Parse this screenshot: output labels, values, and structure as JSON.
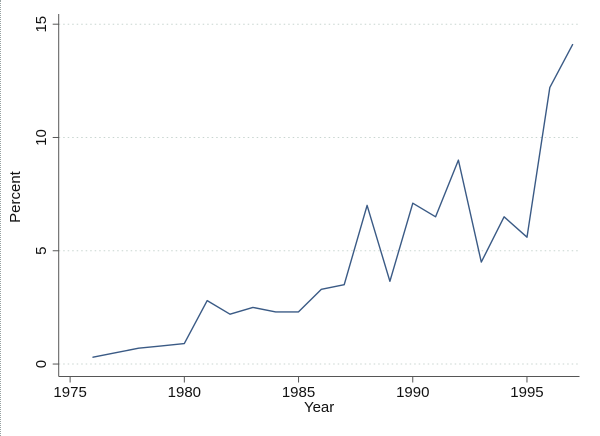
{
  "chart_data": {
    "type": "line",
    "title": "",
    "xlabel": "Year",
    "ylabel": "Percent",
    "x": [
      1976,
      1977,
      1978,
      1979,
      1980,
      1981,
      1982,
      1983,
      1984,
      1985,
      1986,
      1987,
      1988,
      1989,
      1990,
      1991,
      1992,
      1993,
      1994,
      1995,
      1996,
      1997
    ],
    "series": [
      {
        "name": "percent",
        "values": [
          0.3,
          0.5,
          0.7,
          0.8,
          0.9,
          2.8,
          2.2,
          2.5,
          2.3,
          2.3,
          3.3,
          3.5,
          7.0,
          3.65,
          7.1,
          6.5,
          9.0,
          4.5,
          6.5,
          5.6,
          12.2,
          14.1
        ]
      }
    ],
    "x_ticks": [
      1975,
      1980,
      1985,
      1990,
      1995
    ],
    "y_ticks": [
      0,
      5,
      10,
      15
    ],
    "xlim": [
      1974.5,
      1997.3
    ],
    "ylim": [
      -0.55,
      15.45
    ],
    "grid": "horizontal-dotted",
    "legend": "none",
    "colors": {
      "line": "#3a5a85",
      "grid": "#c8d5d0",
      "axis": "#565656",
      "text": "#111111",
      "background": "#ffffff"
    }
  }
}
